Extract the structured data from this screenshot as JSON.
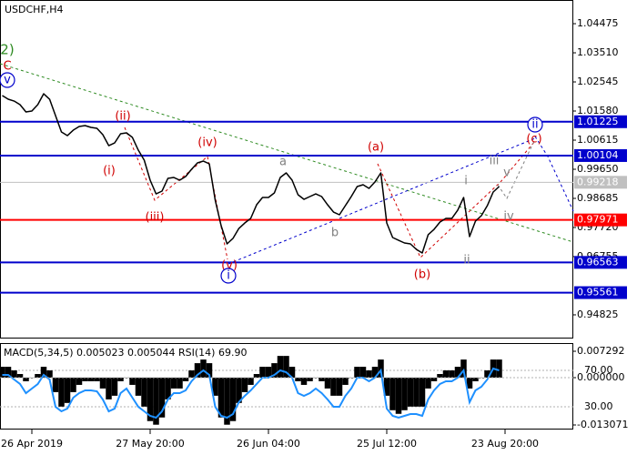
{
  "chart_data": [
    {
      "type": "line",
      "title": "USDCHF,H4",
      "x": [
        0,
        1,
        2,
        3,
        4,
        5,
        6,
        7,
        8,
        9,
        10,
        11,
        12,
        13,
        14,
        15,
        16,
        17,
        18,
        19,
        20,
        21,
        22,
        23,
        24,
        25,
        26,
        27,
        28,
        29,
        30,
        31,
        32,
        33,
        34,
        35,
        36,
        37,
        38,
        39,
        40,
        41,
        42,
        43,
        44,
        45,
        46,
        47,
        48,
        49,
        50,
        51,
        52,
        53,
        54,
        55,
        56,
        57,
        58,
        59,
        60,
        61,
        62,
        63,
        64,
        65,
        66,
        67,
        68,
        69,
        70,
        71,
        72,
        73,
        74,
        75,
        76,
        77,
        78,
        79,
        80,
        81,
        82,
        83,
        84
      ],
      "series": [
        {
          "color": "#000000",
          "values": [
            1.02092,
            1.01972,
            1.01911,
            1.01791,
            1.0155,
            1.0158,
            1.01791,
            1.02153,
            1.01972,
            1.01429,
            1.00886,
            1.00765,
            1.00946,
            1.01067,
            1.01097,
            1.01037,
            1.01007,
            1.00795,
            1.00434,
            1.00524,
            1.00826,
            1.00856,
            1.00705,
            1.00283,
            0.99951,
            0.99288,
            0.98835,
            0.98926,
            0.99348,
            0.99378,
            0.99288,
            0.99408,
            0.9965,
            0.99861,
            0.99921,
            0.99831,
            0.98624,
            0.9778,
            0.97177,
            0.97358,
            0.97689,
            0.9787,
            0.98021,
            0.98473,
            0.98715,
            0.98715,
            0.98866,
            0.99378,
            0.99529,
            0.99288,
            0.98805,
            0.98654,
            0.98745,
            0.98835,
            0.98745,
            0.98473,
            0.98232,
            0.98142,
            0.98443,
            0.98745,
            0.99077,
            0.99137,
            0.99016,
            0.99228,
            0.99529,
            0.9787,
            0.97388,
            0.97297,
            0.97207,
            0.97177,
            0.96996,
            0.96875,
            0.97479,
            0.97659,
            0.97901,
            0.98021,
            0.98021,
            0.98293,
            0.98715,
            0.97418,
            0.97931,
            0.98112,
            0.98443,
            0.98896,
            0.99077
          ]
        }
      ],
      "xlim": [
        -0.385,
        96.54
      ],
      "xticks": [
        {
          "value": 5,
          "label": "26 Apr 2019"
        },
        {
          "value": 25,
          "label": "27 May 20:00"
        },
        {
          "value": 45,
          "label": "26 Jun 04:00"
        },
        {
          "value": 65,
          "label": "25 Jul 12:00"
        },
        {
          "value": 85,
          "label": "23 Aug 20:00"
        }
      ],
      "ylim": [
        0.9404,
        1.0526
      ],
      "yticks": [
        1.04475,
        {
          "value": 1.0351,
          "label": "1.03510"
        },
        1.02545,
        {
          "value": 1.0158,
          "label": "1.01580"
        },
        1.00615,
        {
          "value": 0.9965,
          "label": "0.99650"
        },
        0.98685,
        {
          "value": 0.9772,
          "label": "0.97720"
        },
        0.96755,
        0.94825
      ],
      "levels": [
        {
          "value": 1.01225,
          "color": "#0000cc"
        },
        {
          "value": 1.00104,
          "color": "#0000cc"
        },
        {
          "value": 0.99218,
          "color": "#c0c0c0"
        },
        {
          "value": 0.97971,
          "color": "#ff0000"
        },
        {
          "value": 0.96563,
          "color": "#0000cc"
        },
        {
          "value": 0.95561,
          "color": "#0000cc"
        }
      ],
      "annotations": [
        {
          "text": "2)",
          "color": "#2e8b22"
        },
        {
          "text": "C",
          "color": "#d00000"
        },
        {
          "text": "v",
          "color": "#0000cc",
          "circled": true
        },
        {
          "text": "(ii)",
          "color": "#d00000"
        },
        {
          "text": "(i)",
          "color": "#d00000"
        },
        {
          "text": "(iii)",
          "color": "#d00000"
        },
        {
          "text": "(iv)",
          "color": "#d00000"
        },
        {
          "text": "(v)",
          "color": "#d00000"
        },
        {
          "text": "i",
          "color": "#0000cc",
          "circled": true
        },
        {
          "text": "a",
          "color": "#808080"
        },
        {
          "text": "b",
          "color": "#808080"
        },
        {
          "text": "(a)",
          "color": "#d00000"
        },
        {
          "text": "(b)",
          "color": "#d00000"
        },
        {
          "text": "i",
          "color": "#808080"
        },
        {
          "text": "ii",
          "color": "#808080"
        },
        {
          "text": "iii",
          "color": "#808080"
        },
        {
          "text": "iv",
          "color": "#808080"
        },
        {
          "text": "v",
          "color": "#808080"
        },
        {
          "text": "(c)",
          "color": "#d00000"
        },
        {
          "text": "ii",
          "color": "#0000cc",
          "circled": true
        }
      ]
    },
    {
      "type": "macd",
      "title": "MACD(5,34,5) 0.005023 0.005044 RSI(14) 69.90",
      "series": [
        {
          "color": "#000000",
          "values": [
            0.003,
            0.003,
            0.002,
            0.001,
            -0.001,
            0,
            0.001,
            0.003,
            0.002,
            -0.004,
            -0.008,
            -0.007,
            -0.004,
            -0.002,
            -0.001,
            -0.001,
            -0.001,
            -0.003,
            -0.006,
            -0.005,
            -0.001,
            0,
            -0.002,
            -0.005,
            -0.008,
            -0.012,
            -0.013,
            -0.011,
            -0.006,
            -0.003,
            -0.003,
            -0.001,
            0.002,
            0.004,
            0.005,
            0.004,
            -0.005,
            -0.011,
            -0.013,
            -0.012,
            -0.007,
            -0.004,
            -0.002,
            0.001,
            0.003,
            0.003,
            0.004,
            0.006,
            0.006,
            0.003,
            -0.001,
            -0.002,
            -0.001,
            0,
            -0.001,
            -0.003,
            -0.005,
            -0.005,
            -0.002,
            0,
            0.003,
            0.003,
            0.002,
            0.003,
            0.005,
            -0.005,
            -0.009,
            -0.01,
            -0.009,
            -0.008,
            -0.008,
            -0.008,
            -0.003,
            -0.001,
            0.001,
            0.002,
            0.002,
            0.003,
            0.005,
            -0.003,
            -0.001,
            0,
            0.002,
            0.005,
            0.005
          ]
        },
        {
          "color": "#1e90ff",
          "axis": "y2",
          "values": [
            65,
            65,
            60,
            55,
            45,
            50,
            55,
            65,
            60,
            30,
            25,
            28,
            40,
            45,
            48,
            48,
            47,
            38,
            25,
            28,
            45,
            50,
            40,
            30,
            25,
            20,
            18,
            25,
            38,
            45,
            45,
            48,
            58,
            65,
            70,
            65,
            30,
            20,
            18,
            22,
            35,
            42,
            48,
            55,
            62,
            62,
            65,
            70,
            68,
            62,
            45,
            42,
            45,
            50,
            45,
            38,
            30,
            30,
            42,
            50,
            62,
            62,
            58,
            62,
            70,
            28,
            20,
            18,
            20,
            22,
            22,
            20,
            38,
            48,
            55,
            58,
            58,
            62,
            70,
            35,
            48,
            52,
            60,
            72,
            70
          ]
        }
      ],
      "ylim": [
        -0.01433,
        0.0093
      ],
      "yticks": [
        0.007292,
        {
          "value": 0,
          "label": "0.000000"
        },
        -0.013071
      ],
      "y2lim": [
        5,
        99
      ],
      "y2ticks": [
        {
          "value": 70,
          "label": "70.00"
        },
        {
          "value": 30,
          "label": "30.00"
        }
      ]
    }
  ]
}
